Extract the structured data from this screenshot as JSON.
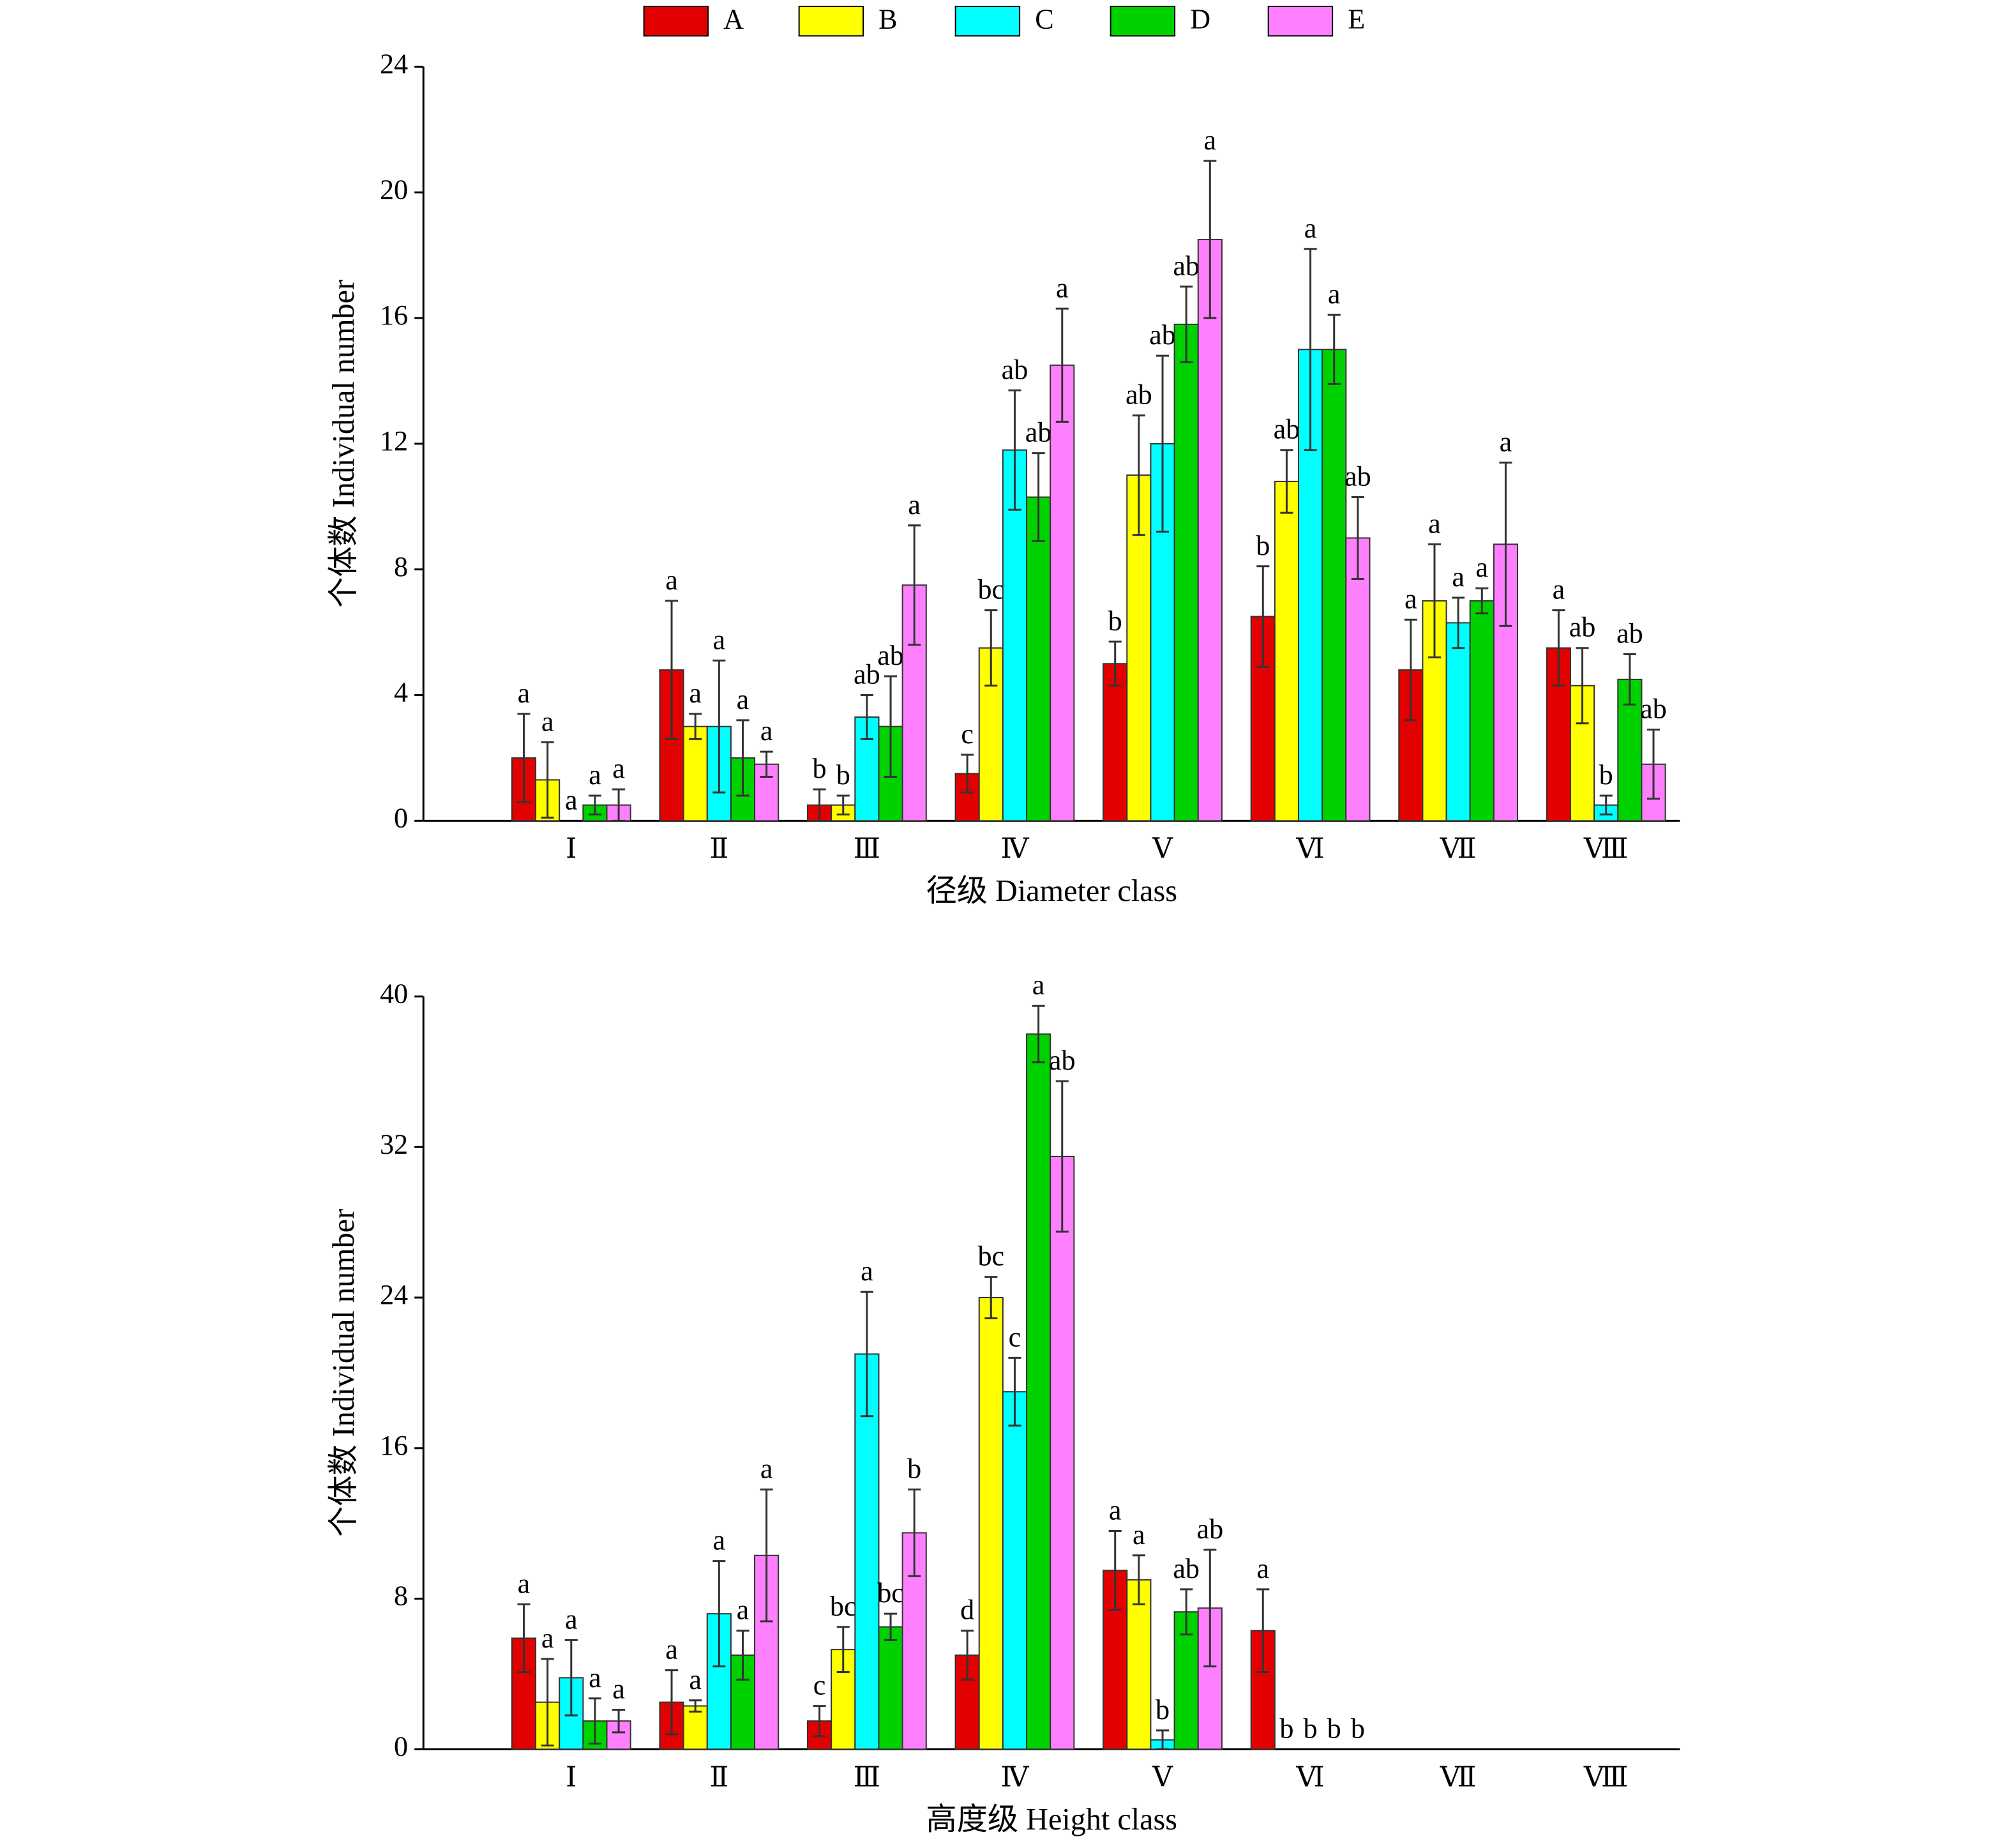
{
  "chart_data": [
    {
      "type": "bar",
      "xlabel": "径级 Diameter class",
      "ylabel": "个体数 Individual number",
      "categories": [
        "Ⅰ",
        "Ⅱ",
        "Ⅲ",
        "Ⅳ",
        "Ⅴ",
        "Ⅵ",
        "Ⅶ",
        "Ⅷ"
      ],
      "ylim": [
        0,
        24
      ],
      "yticks": [
        0,
        4,
        8,
        12,
        16,
        20,
        24
      ],
      "series": [
        {
          "name": "A",
          "color": "#e30000",
          "values": [
            2.0,
            4.8,
            0.5,
            1.5,
            5.0,
            6.5,
            4.8,
            5.5
          ],
          "errors": [
            1.4,
            2.2,
            0.5,
            0.6,
            0.7,
            1.6,
            1.6,
            1.2
          ],
          "labels": [
            "a",
            "a",
            "b",
            "c",
            "b",
            "b",
            "a",
            "a"
          ]
        },
        {
          "name": "B",
          "color": "#ffff00",
          "values": [
            1.3,
            3.0,
            0.5,
            5.5,
            11.0,
            10.8,
            7.0,
            4.3
          ],
          "errors": [
            1.2,
            0.4,
            0.3,
            1.2,
            1.9,
            1.0,
            1.8,
            1.2
          ],
          "labels": [
            "a",
            "a",
            "b",
            "bc",
            "ab",
            "ab",
            "a",
            "ab"
          ]
        },
        {
          "name": "C",
          "color": "#00ffff",
          "values": [
            0,
            3.0,
            3.3,
            11.8,
            12.0,
            15.0,
            6.3,
            0.5
          ],
          "errors": [
            null,
            2.1,
            0.7,
            1.9,
            2.8,
            3.2,
            0.8,
            0.3
          ],
          "labels": [
            "a",
            "a",
            "ab",
            "ab",
            "ab",
            "a",
            "a",
            "b"
          ]
        },
        {
          "name": "D",
          "color": "#00d200",
          "values": [
            0.5,
            2.0,
            3.0,
            10.3,
            15.8,
            15.0,
            7.0,
            4.5
          ],
          "errors": [
            0.3,
            1.2,
            1.6,
            1.4,
            1.2,
            1.1,
            0.4,
            0.8
          ],
          "labels": [
            "a",
            "a",
            "ab",
            "ab",
            "ab",
            "a",
            "a",
            "ab"
          ]
        },
        {
          "name": "E",
          "color": "#ff80ff",
          "values": [
            0.5,
            1.8,
            7.5,
            14.5,
            18.5,
            9.0,
            8.8,
            1.8
          ],
          "errors": [
            0.5,
            0.4,
            1.9,
            1.8,
            2.5,
            1.3,
            2.6,
            1.1
          ],
          "labels": [
            "a",
            "a",
            "a",
            "a",
            "a",
            "ab",
            "a",
            "ab"
          ]
        }
      ]
    },
    {
      "type": "bar",
      "xlabel": "高度级 Height class",
      "ylabel": "个体数 Individual number",
      "categories": [
        "Ⅰ",
        "Ⅱ",
        "Ⅲ",
        "Ⅳ",
        "Ⅴ",
        "Ⅵ",
        "Ⅶ",
        "Ⅷ"
      ],
      "ylim": [
        0,
        40
      ],
      "yticks": [
        0,
        8,
        16,
        24,
        32,
        40
      ],
      "series": [
        {
          "color": "#e30000",
          "values": [
            5.9,
            2.5,
            1.5,
            5.0,
            9.5,
            6.3,
            0,
            0
          ],
          "errors": [
            1.8,
            1.7,
            0.8,
            1.3,
            2.1,
            2.2,
            null,
            null
          ],
          "labels": [
            "a",
            "a",
            "c",
            "d",
            "a",
            "a",
            null,
            null
          ]
        },
        {
          "color": "#ffff00",
          "values": [
            2.5,
            2.3,
            5.3,
            24.0,
            9.0,
            0,
            0,
            0
          ],
          "errors": [
            2.3,
            0.3,
            1.2,
            1.1,
            1.3,
            null,
            null,
            null
          ],
          "labels": [
            "a",
            "a",
            "bc",
            "bc",
            "a",
            "b",
            null,
            null
          ]
        },
        {
          "color": "#00ffff",
          "values": [
            3.8,
            7.2,
            21.0,
            19.0,
            0.5,
            0,
            0,
            0
          ],
          "errors": [
            2.0,
            2.8,
            3.3,
            1.8,
            0.5,
            null,
            null,
            null
          ],
          "labels": [
            "a",
            "a",
            "a",
            "c",
            "b",
            "b",
            null,
            null
          ]
        },
        {
          "color": "#00d200",
          "values": [
            1.5,
            5.0,
            6.5,
            38.0,
            7.3,
            0,
            0,
            0
          ],
          "errors": [
            1.2,
            1.3,
            0.7,
            1.5,
            1.2,
            null,
            null,
            null
          ],
          "labels": [
            "a",
            "a",
            "bc",
            "a",
            "ab",
            "b",
            null,
            null
          ]
        },
        {
          "color": "#ff80ff",
          "values": [
            1.5,
            10.3,
            11.5,
            31.5,
            7.5,
            0,
            0,
            0
          ],
          "errors": [
            0.6,
            3.5,
            2.3,
            4.0,
            3.1,
            null,
            null,
            null
          ],
          "labels": [
            "a",
            "a",
            "b",
            "ab",
            "ab",
            "b",
            null,
            null
          ]
        }
      ]
    }
  ]
}
